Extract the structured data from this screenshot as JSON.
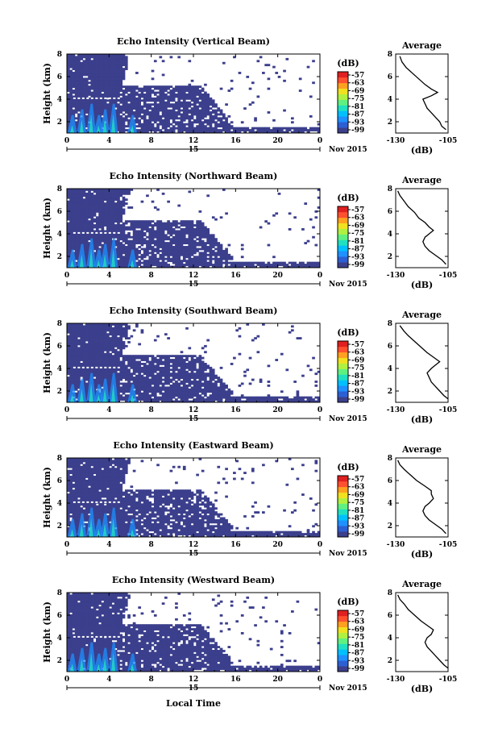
{
  "figure": {
    "colorbar_unit": "(dB)",
    "colorbar_ticks": [
      "-57",
      "-63",
      "-69",
      "-75",
      "-81",
      "-87",
      "-93",
      "-99"
    ],
    "average_title": "Average",
    "average_xlabel": "(dB)",
    "date_label": "Nov 2015",
    "day_label": "15",
    "xlabel": "Local Time",
    "ylabel": "Height (km)",
    "colormap": [
      "#3b3f8c",
      "#2c5fd4",
      "#1e90ff",
      "#00c0ff",
      "#20e0c0",
      "#60f080",
      "#b0f040",
      "#f0e020",
      "#ffa020",
      "#ff5030",
      "#e02020"
    ]
  },
  "chart_data": [
    {
      "type": "heatmap",
      "title": "Echo Intensity (Vertical Beam)",
      "x_ticks": [
        "0",
        "4",
        "8",
        "12",
        "16",
        "20",
        "0"
      ],
      "y_ticks": [
        "2",
        "4",
        "6",
        "8"
      ],
      "xlim": [
        0,
        24
      ],
      "ylim": [
        1,
        8
      ],
      "clim": [
        -99,
        -57
      ],
      "avg_xlim": [
        -130,
        -105
      ],
      "avg_x_ticks": [
        "-130",
        "-105"
      ],
      "avg_ylim": [
        1,
        8
      ],
      "avg_y_ticks": [
        "2",
        "4",
        "6",
        "8"
      ],
      "average_profile": [
        [
          -106,
          1.3
        ],
        [
          -108,
          1.6
        ],
        [
          -109,
          2.0
        ],
        [
          -111,
          2.4
        ],
        [
          -113,
          2.8
        ],
        [
          -115,
          3.2
        ],
        [
          -116,
          3.6
        ],
        [
          -117,
          4.0
        ],
        [
          -113,
          4.3
        ],
        [
          -110,
          4.6
        ],
        [
          -113,
          4.9
        ],
        [
          -116,
          5.3
        ],
        [
          -119,
          5.8
        ],
        [
          -122,
          6.3
        ],
        [
          -125,
          6.8
        ],
        [
          -127,
          7.3
        ],
        [
          -128,
          7.8
        ]
      ]
    },
    {
      "type": "heatmap",
      "title": "Echo Intensity (Northward Beam)",
      "x_ticks": [
        "0",
        "4",
        "8",
        "12",
        "16",
        "20",
        "0"
      ],
      "y_ticks": [
        "2",
        "4",
        "6",
        "8"
      ],
      "xlim": [
        0,
        24
      ],
      "ylim": [
        1,
        8
      ],
      "clim": [
        -99,
        -57
      ],
      "avg_xlim": [
        -130,
        -105
      ],
      "avg_x_ticks": [
        "-130",
        "-105"
      ],
      "avg_ylim": [
        1,
        8
      ],
      "avg_y_ticks": [
        "2",
        "4",
        "6",
        "8"
      ],
      "average_profile": [
        [
          -106,
          1.3
        ],
        [
          -108,
          1.7
        ],
        [
          -111,
          2.1
        ],
        [
          -114,
          2.5
        ],
        [
          -116,
          2.9
        ],
        [
          -117,
          3.3
        ],
        [
          -116,
          3.7
        ],
        [
          -114,
          4.0
        ],
        [
          -112,
          4.3
        ],
        [
          -114,
          4.6
        ],
        [
          -116,
          5.0
        ],
        [
          -119,
          5.4
        ],
        [
          -121,
          5.9
        ],
        [
          -124,
          6.4
        ],
        [
          -126,
          6.9
        ],
        [
          -128,
          7.4
        ],
        [
          -129,
          7.8
        ]
      ]
    },
    {
      "type": "heatmap",
      "title": "Echo Intensity (Southward Beam)",
      "x_ticks": [
        "0",
        "4",
        "8",
        "12",
        "16",
        "20",
        "0"
      ],
      "y_ticks": [
        "2",
        "4",
        "6",
        "8"
      ],
      "xlim": [
        0,
        24
      ],
      "ylim": [
        1,
        8
      ],
      "clim": [
        -99,
        -57
      ],
      "avg_xlim": [
        -130,
        -105
      ],
      "avg_x_ticks": [
        "-130",
        "-105"
      ],
      "avg_ylim": [
        1,
        8
      ],
      "avg_y_ticks": [
        "2",
        "4",
        "6",
        "8"
      ],
      "average_profile": [
        [
          -105,
          1.3
        ],
        [
          -107,
          1.6
        ],
        [
          -109,
          2.0
        ],
        [
          -111,
          2.4
        ],
        [
          -113,
          2.8
        ],
        [
          -114,
          3.2
        ],
        [
          -115,
          3.6
        ],
        [
          -113,
          4.0
        ],
        [
          -111,
          4.3
        ],
        [
          -109,
          4.6
        ],
        [
          -112,
          5.0
        ],
        [
          -115,
          5.4
        ],
        [
          -118,
          5.9
        ],
        [
          -121,
          6.4
        ],
        [
          -124,
          6.9
        ],
        [
          -126,
          7.3
        ],
        [
          -128,
          7.8
        ]
      ]
    },
    {
      "type": "heatmap",
      "title": "Echo Intensity (Eastward Beam)",
      "x_ticks": [
        "0",
        "4",
        "8",
        "12",
        "16",
        "20",
        "0"
      ],
      "y_ticks": [
        "2",
        "4",
        "6",
        "8"
      ],
      "xlim": [
        0,
        24
      ],
      "ylim": [
        1,
        8
      ],
      "clim": [
        -99,
        -57
      ],
      "avg_xlim": [
        -130,
        -105
      ],
      "avg_x_ticks": [
        "-130",
        "-105"
      ],
      "avg_ylim": [
        1,
        8
      ],
      "avg_y_ticks": [
        "2",
        "4",
        "6",
        "8"
      ],
      "average_profile": [
        [
          -106,
          1.3
        ],
        [
          -108,
          1.7
        ],
        [
          -111,
          2.1
        ],
        [
          -114,
          2.5
        ],
        [
          -116,
          2.9
        ],
        [
          -117,
          3.3
        ],
        [
          -116,
          3.7
        ],
        [
          -114,
          4.0
        ],
        [
          -112,
          4.4
        ],
        [
          -113,
          4.8
        ],
        [
          -113,
          5.1
        ],
        [
          -116,
          5.5
        ],
        [
          -120,
          6.0
        ],
        [
          -123,
          6.5
        ],
        [
          -126,
          7.0
        ],
        [
          -128,
          7.4
        ],
        [
          -129,
          7.8
        ]
      ]
    },
    {
      "type": "heatmap",
      "title": "Echo Intensity (Westward Beam)",
      "x_ticks": [
        "0",
        "4",
        "8",
        "12",
        "16",
        "20",
        "0"
      ],
      "y_ticks": [
        "2",
        "4",
        "6",
        "8"
      ],
      "xlim": [
        0,
        24
      ],
      "ylim": [
        1,
        8
      ],
      "clim": [
        -99,
        -57
      ],
      "avg_xlim": [
        -130,
        -105
      ],
      "avg_x_ticks": [
        "-130",
        "-105"
      ],
      "avg_ylim": [
        1,
        8
      ],
      "avg_y_ticks": [
        "2",
        "4",
        "6",
        "8"
      ],
      "average_profile": [
        [
          -105,
          1.3
        ],
        [
          -107,
          1.6
        ],
        [
          -109,
          2.0
        ],
        [
          -111,
          2.4
        ],
        [
          -113,
          2.8
        ],
        [
          -115,
          3.2
        ],
        [
          -116,
          3.6
        ],
        [
          -115,
          4.0
        ],
        [
          -113,
          4.3
        ],
        [
          -112,
          4.7
        ],
        [
          -115,
          5.1
        ],
        [
          -118,
          5.5
        ],
        [
          -121,
          6.0
        ],
        [
          -124,
          6.5
        ],
        [
          -126,
          7.0
        ],
        [
          -128,
          7.4
        ],
        [
          -129,
          7.8
        ]
      ]
    }
  ]
}
